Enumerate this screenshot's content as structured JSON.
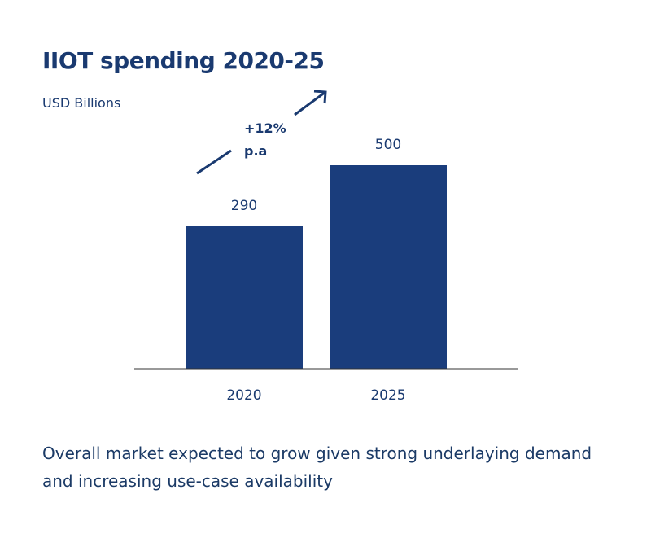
{
  "chart_data": {
    "type": "bar",
    "title": "IIOT spending 2020-25",
    "subtitle": "USD Billions",
    "categories": [
      "2020",
      "2025"
    ],
    "values": [
      290,
      500
    ],
    "data_labels": [
      "290",
      "500"
    ],
    "bar_color": "#1a3d7c",
    "grid": false,
    "annotation": {
      "line1": "+12%",
      "line2": "p.a",
      "icon": "trend-arrow-up-right-icon"
    }
  },
  "footnote": "Overall market expected to grow given strong underlaying demand and increasing use-case availability"
}
